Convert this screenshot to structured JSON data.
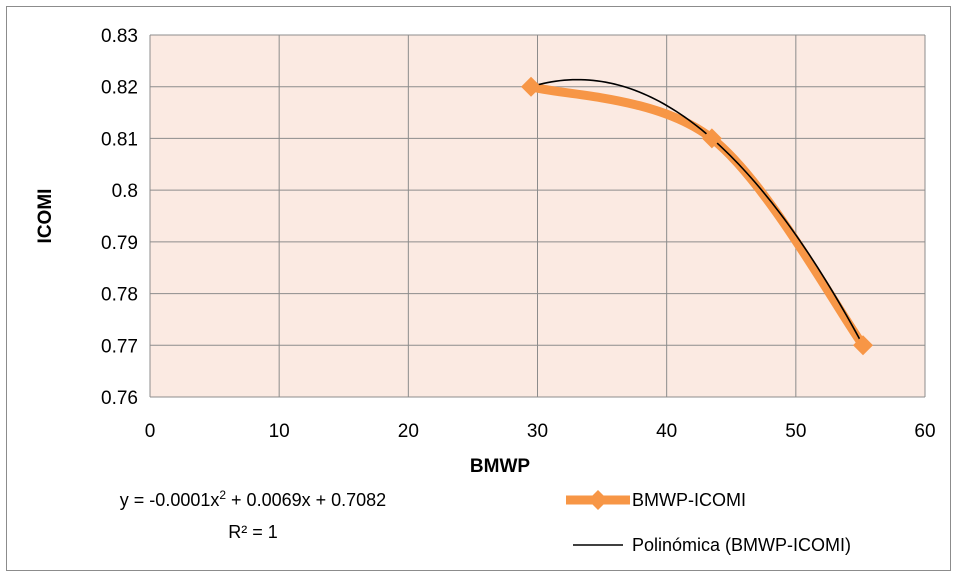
{
  "chart_data": {
    "type": "scatter",
    "xlabel": "BMWP",
    "ylabel": "ICOMI",
    "xlim": [
      0,
      60
    ],
    "ylim": [
      0.76,
      0.83
    ],
    "x_ticks": [
      "0",
      "10",
      "20",
      "30",
      "40",
      "50",
      "60"
    ],
    "y_ticks": [
      "0.76",
      "0.77",
      "0.78",
      "0.79",
      "0.8",
      "0.81",
      "0.82",
      "0.83"
    ],
    "grid": true,
    "series": [
      {
        "name": "BMWP-ICOMI",
        "style": "smoothed line with diamond markers",
        "color": "#F79646",
        "x": [
          29.5,
          43.5,
          55.2
        ],
        "y": [
          0.82,
          0.81,
          0.77
        ]
      }
    ],
    "trendline": {
      "name": "Polinómica (BMWP-ICOMI)",
      "type": "polynomial",
      "order": 2,
      "color": "#000000",
      "equation_prefix": "y = -0.0001x",
      "equation_sup": "2",
      "equation_suffix": " + 0.0069x + 0.7082",
      "r2_text": "R² = 1"
    },
    "plot_background": "#FBEAE2",
    "legend_position": "bottom-right"
  }
}
